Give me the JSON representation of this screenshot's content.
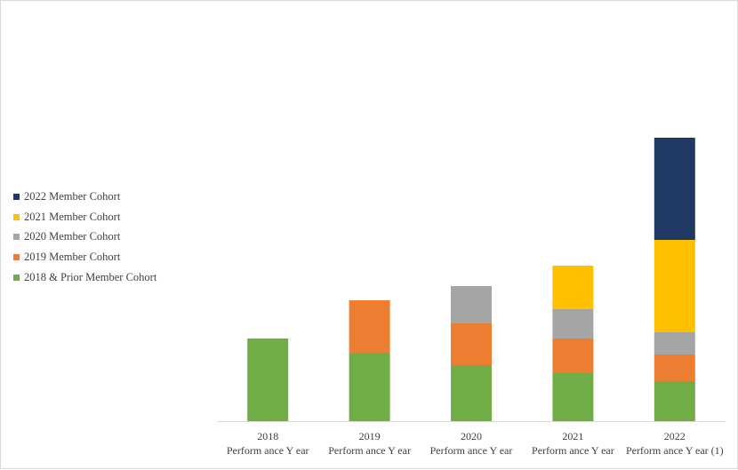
{
  "chart_data": {
    "type": "bar",
    "stacked": true,
    "categories": [
      [
        "2018",
        "Perform ance Y ear"
      ],
      [
        "2019",
        "Perform ance Y ear"
      ],
      [
        "2020",
        "Perform ance Y ear"
      ],
      [
        "2021",
        "Perform ance Y ear"
      ],
      [
        "2022",
        "Perform ance Y ear (1)"
      ]
    ],
    "series": [
      {
        "name": "2018 & Prior Member Cohort",
        "color": "#70AD47",
        "values": [
          93,
          77,
          63,
          54,
          45
        ]
      },
      {
        "name": "2019 Member Cohort",
        "color": "#ED7D31",
        "values": [
          0,
          59,
          47,
          39,
          30
        ]
      },
      {
        "name": "2020 Member Cohort",
        "color": "#A5A5A5",
        "values": [
          0,
          0,
          42,
          33,
          25
        ]
      },
      {
        "name": "2021 Member Cohort",
        "color": "#FFC000",
        "values": [
          0,
          0,
          0,
          49,
          104
        ]
      },
      {
        "name": "2022 Member Cohort",
        "color": "#1F3864",
        "values": [
          0,
          0,
          0,
          0,
          115
        ]
      }
    ],
    "legend_order": [
      4,
      3,
      2,
      1,
      0
    ],
    "legend_position": "left",
    "ylim": [
      0,
      320
    ],
    "y_axis_visible": false,
    "grid": false,
    "title": "",
    "xlabel": "",
    "ylabel": ""
  }
}
